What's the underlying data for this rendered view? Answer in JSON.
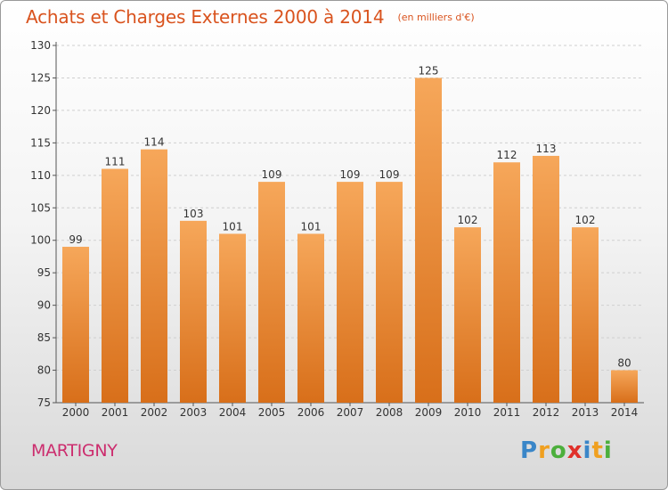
{
  "header": {
    "title": "Achats et Charges Externes 2000 à 2014",
    "subtitle": "(en milliers d'€)"
  },
  "footer": {
    "city": "MARTIGNY",
    "brand_letters": [
      "P",
      "r",
      "o",
      "x",
      "i",
      "t",
      "i"
    ],
    "brand_colors": [
      "#3a86c8",
      "#f0a020",
      "#4caf3c",
      "#e0302a",
      "#3a86c8",
      "#f0a020",
      "#4caf3c"
    ]
  },
  "chart_data": {
    "type": "bar",
    "categories": [
      "2000",
      "2001",
      "2002",
      "2003",
      "2004",
      "2005",
      "2006",
      "2007",
      "2008",
      "2009",
      "2010",
      "2011",
      "2012",
      "2013",
      "2014"
    ],
    "values": [
      99,
      111,
      114,
      103,
      101,
      109,
      101,
      109,
      109,
      125,
      102,
      112,
      113,
      102,
      80
    ],
    "ylim": [
      75,
      130
    ],
    "yticks": [
      75,
      80,
      85,
      90,
      95,
      100,
      105,
      110,
      115,
      120,
      125,
      130
    ],
    "grid": true,
    "bar_color_top": "#f6a75a",
    "bar_color_bottom": "#d86f1a"
  }
}
